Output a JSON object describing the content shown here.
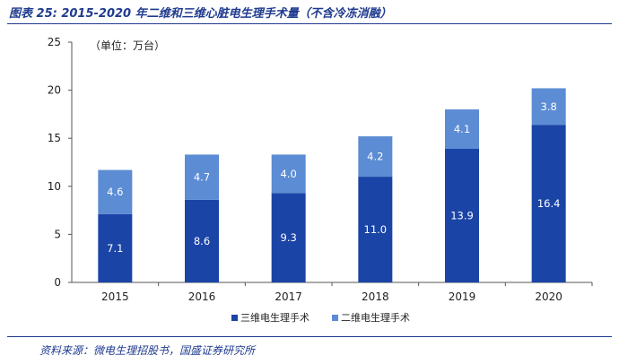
{
  "figure": {
    "title": "图表 25:  2015-2020 年二维和三维心脏电生理手术量（不含冷冻消融）",
    "source": "资料来源：微电生理招股书，国盛证券研究所"
  },
  "chart_data": {
    "type": "bar",
    "stacked": true,
    "unit_note": "（单位：万台）",
    "categories": [
      "2015",
      "2016",
      "2017",
      "2018",
      "2019",
      "2020"
    ],
    "series": [
      {
        "name": "三维电生理手术",
        "color": "#1a44a6",
        "values": [
          7.1,
          8.6,
          9.3,
          11.0,
          13.9,
          16.4
        ]
      },
      {
        "name": "二维电生理手术",
        "color": "#5b8cd4",
        "values": [
          4.6,
          4.7,
          4.0,
          4.2,
          4.1,
          3.8
        ]
      }
    ],
    "ylim": [
      0,
      25
    ],
    "yticks": [
      0,
      5,
      10,
      15,
      20,
      25
    ],
    "grid": false,
    "legend_position": "bottom"
  }
}
